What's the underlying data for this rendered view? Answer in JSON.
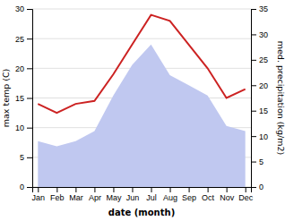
{
  "chart_data": {
    "type": "line",
    "xlabel": "date (month)",
    "ylabel": "max temp (C)",
    "y2label": "med. precipitation (kg/m2)",
    "categories": [
      "Jan",
      "Feb",
      "Mar",
      "Apr",
      "May",
      "Jun",
      "Jul",
      "Aug",
      "Sep",
      "Oct",
      "Nov",
      "Dec"
    ],
    "series": [
      {
        "type": "area",
        "axis": "y2",
        "color": "#c0c8f0",
        "values": [
          9.0,
          8.0,
          9.0,
          11.0,
          18.0,
          24.0,
          28.0,
          22.0,
          20.0,
          18.0,
          12.0,
          11.0
        ]
      },
      {
        "type": "line",
        "color": "#cc2222",
        "values": [
          14.0,
          12.5,
          14.0,
          14.5,
          19.0,
          24.0,
          29.0,
          28.0,
          24.0,
          20.0,
          15.0,
          16.5
        ]
      }
    ],
    "ylim": [
      0,
      30
    ],
    "yticks": [
      0,
      5,
      10,
      15,
      20,
      25,
      30
    ],
    "y2lim": [
      0,
      35
    ],
    "y2ticks": [
      0,
      5,
      10,
      15,
      20,
      25,
      30,
      35
    ],
    "grid": true
  }
}
